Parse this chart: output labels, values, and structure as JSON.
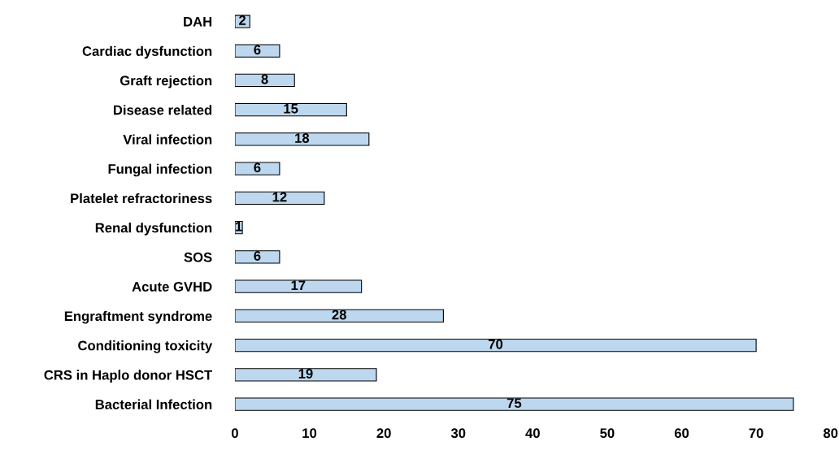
{
  "chart_data": {
    "type": "bar",
    "orientation": "horizontal",
    "categories": [
      "DAH",
      "Cardiac dysfunction",
      "Graft rejection",
      "Disease related",
      "Viral infection",
      "Fungal infection",
      "Platelet refractoriness",
      "Renal dysfunction",
      "SOS",
      "Acute GVHD",
      "Engraftment syndrome",
      "Conditioning toxicity",
      "CRS in Haplo donor HSCT",
      "Bacterial Infection"
    ],
    "values": [
      2,
      6,
      8,
      15,
      18,
      6,
      12,
      1,
      6,
      17,
      28,
      70,
      19,
      75
    ],
    "color": "#bdd7ee",
    "xlim": [
      0,
      80
    ],
    "xticks": [
      0,
      10,
      20,
      30,
      40,
      50,
      60,
      70,
      80
    ],
    "data_labels": true,
    "grid": false,
    "legend": false
  }
}
